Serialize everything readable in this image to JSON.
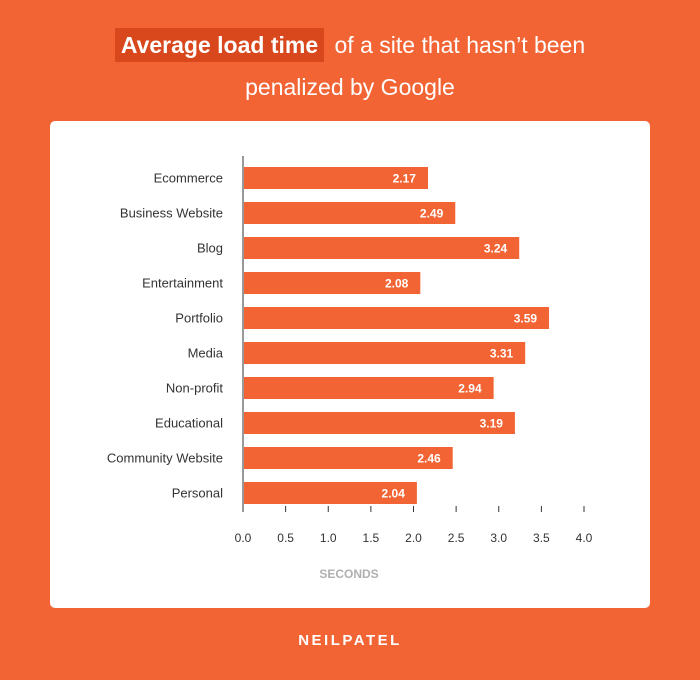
{
  "header": {
    "title_highlight": "Average load time",
    "title_rest_line1": "of a site that hasn’t been",
    "title_rest_line2": "penalized by Google"
  },
  "footer": {
    "logo": "NEILPATEL"
  },
  "colors": {
    "background": "#f26434",
    "bar": "#f26434",
    "highlight": "#d9481d",
    "card": "#ffffff"
  },
  "chart_data": {
    "type": "bar",
    "orientation": "horizontal",
    "categories": [
      "Ecommerce",
      "Business Website",
      "Blog",
      "Entertainment",
      "Portfolio",
      "Media",
      "Non-profit",
      "Educational",
      "Community Website",
      "Personal"
    ],
    "values": [
      2.17,
      2.49,
      3.24,
      2.08,
      3.59,
      3.31,
      2.94,
      3.19,
      2.46,
      2.04
    ],
    "value_labels": [
      "2.17",
      "2.49",
      "3.24",
      "2.08",
      "3.59",
      "3.31",
      "2.94",
      "3.19",
      "2.46",
      "2.04"
    ],
    "x_ticks": [
      "0.0",
      "0.5",
      "1.0",
      "1.5",
      "2.0",
      "2.5",
      "3.0",
      "3.5",
      "4.0"
    ],
    "xlabel": "SECONDS",
    "xlim": [
      0,
      4
    ],
    "grid": false
  }
}
